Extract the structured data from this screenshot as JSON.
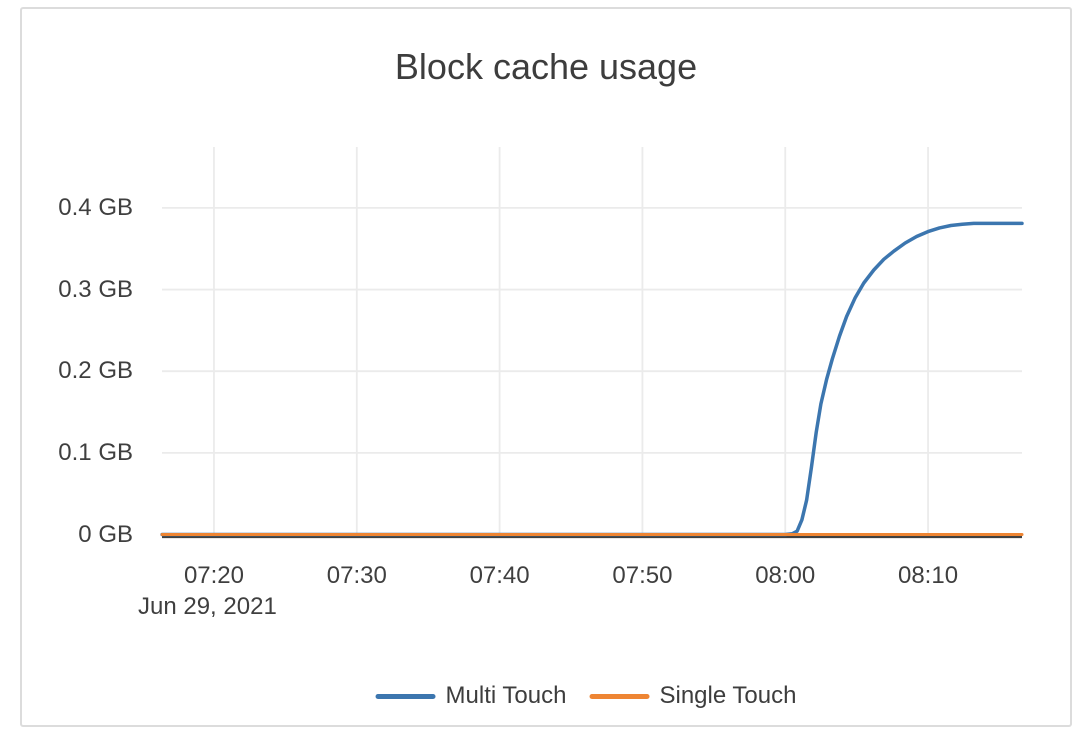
{
  "frame": {
    "background": "#ffffff",
    "border_color": "#dcdcdc"
  },
  "chart_data": {
    "type": "line",
    "title": "Block cache usage",
    "xlabel": "",
    "ylabel": "",
    "x_axis_date": "Jun 29, 2021",
    "x_ticks": [
      "07:20",
      "07:30",
      "07:40",
      "07:50",
      "08:00",
      "08:10"
    ],
    "y_ticks": [
      {
        "label": "0 GB",
        "value": 0
      },
      {
        "label": "0.1 GB",
        "value": 0.1
      },
      {
        "label": "0.2 GB",
        "value": 0.2
      },
      {
        "label": "0.3 GB",
        "value": 0.3
      },
      {
        "label": "0.4 GB",
        "value": 0.4
      }
    ],
    "x_domain_minutes_after_0700": [
      16.36,
      76.58
    ],
    "y_domain_gb": [
      0,
      0.4746
    ],
    "grid": true,
    "grid_color": "#ebebeb",
    "axis_line_color": "#404040",
    "text_color": "#3f3f3f",
    "legend_position": "bottom-center",
    "series": [
      {
        "name": "Multi Touch",
        "color": "#3c76af",
        "line_width": 3.5,
        "points": [
          [
            "07:16:22",
            0
          ],
          [
            "07:30:00",
            0
          ],
          [
            "07:45:00",
            0
          ],
          [
            "08:00:00",
            0
          ],
          [
            "08:00:30",
            0.001
          ],
          [
            "08:00:50",
            0.004
          ],
          [
            "08:01:10",
            0.018
          ],
          [
            "08:01:30",
            0.042
          ],
          [
            "08:01:50",
            0.082
          ],
          [
            "08:02:10",
            0.125
          ],
          [
            "08:02:30",
            0.16
          ],
          [
            "08:02:54",
            0.19
          ],
          [
            "08:03:18",
            0.215
          ],
          [
            "08:03:48",
            0.243
          ],
          [
            "08:04:18",
            0.267
          ],
          [
            "08:04:54",
            0.29
          ],
          [
            "08:05:30",
            0.308
          ],
          [
            "08:06:12",
            0.324
          ],
          [
            "08:06:54",
            0.337
          ],
          [
            "08:07:36",
            0.347
          ],
          [
            "08:08:24",
            0.357
          ],
          [
            "08:09:12",
            0.365
          ],
          [
            "08:10:00",
            0.371
          ],
          [
            "08:10:48",
            0.3755
          ],
          [
            "08:11:36",
            0.3785
          ],
          [
            "08:12:24",
            0.38
          ],
          [
            "08:13:12",
            0.381
          ],
          [
            "08:14:00",
            0.381
          ],
          [
            "08:15:00",
            0.381
          ],
          [
            "08:16:35",
            0.381
          ]
        ]
      },
      {
        "name": "Single Touch",
        "color": "#ee8533",
        "line_width": 3,
        "points": [
          [
            "07:16:22",
            0
          ],
          [
            "08:16:35",
            0
          ]
        ]
      }
    ]
  }
}
